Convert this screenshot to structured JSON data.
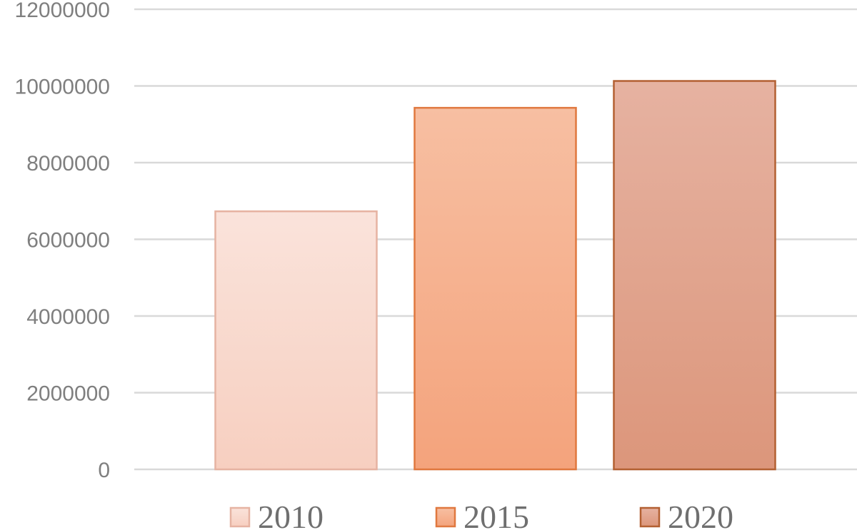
{
  "chart_data": {
    "type": "bar",
    "categories": [
      "2010",
      "2015",
      "2020"
    ],
    "values": [
      6730000,
      9430000,
      10130000
    ],
    "ylim": [
      0,
      12000000
    ],
    "yticks": [
      0,
      2000000,
      4000000,
      6000000,
      8000000,
      10000000,
      12000000
    ],
    "grid": true,
    "legend": "bottom",
    "colors": [
      {
        "fill_top": "#fae3db",
        "fill_bottom": "#f7cfc0",
        "stroke": "#e6b3a2"
      },
      {
        "fill_top": "#f7bfa2",
        "fill_bottom": "#f4a37c",
        "stroke": "#e0783f"
      },
      {
        "fill_top": "#e6b2a1",
        "fill_bottom": "#dc967b",
        "stroke": "#b36032"
      }
    ]
  }
}
